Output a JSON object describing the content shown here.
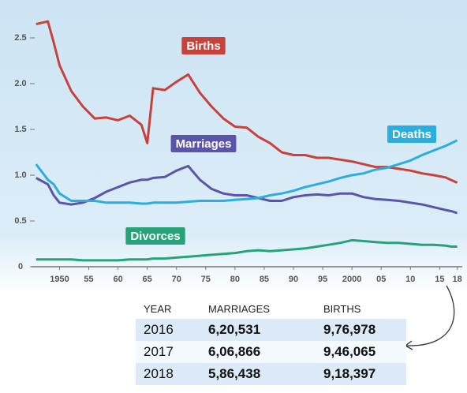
{
  "chart_data": {
    "type": "line",
    "x": [
      1946,
      1948,
      1949,
      1950,
      1952,
      1954,
      1956,
      1958,
      1960,
      1962,
      1964,
      1965,
      1966,
      1968,
      1970,
      1972,
      1974,
      1976,
      1978,
      1980,
      1982,
      1984,
      1986,
      1988,
      1990,
      1992,
      1994,
      1996,
      1998,
      2000,
      2002,
      2004,
      2006,
      2008,
      2010,
      2012,
      2014,
      2016,
      2017,
      2018
    ],
    "series": [
      {
        "name": "Births",
        "color": "#c8413a",
        "values": [
          2.65,
          2.68,
          2.45,
          2.2,
          1.92,
          1.75,
          1.62,
          1.63,
          1.6,
          1.65,
          1.55,
          1.35,
          1.95,
          1.93,
          2.02,
          2.1,
          1.9,
          1.75,
          1.62,
          1.53,
          1.52,
          1.42,
          1.35,
          1.25,
          1.22,
          1.22,
          1.19,
          1.19,
          1.17,
          1.15,
          1.12,
          1.09,
          1.09,
          1.07,
          1.05,
          1.02,
          1.0,
          0.976,
          0.946,
          0.918
        ]
      },
      {
        "name": "Marriages",
        "color": "#5a55a8",
        "values": [
          0.97,
          0.9,
          0.78,
          0.7,
          0.68,
          0.7,
          0.75,
          0.82,
          0.87,
          0.92,
          0.95,
          0.95,
          0.97,
          0.98,
          1.05,
          1.1,
          0.95,
          0.85,
          0.8,
          0.78,
          0.78,
          0.75,
          0.72,
          0.72,
          0.76,
          0.78,
          0.79,
          0.78,
          0.8,
          0.8,
          0.76,
          0.74,
          0.73,
          0.72,
          0.7,
          0.68,
          0.65,
          0.62,
          0.607,
          0.586
        ]
      },
      {
        "name": "Deaths",
        "color": "#2aaee0",
        "values": [
          1.12,
          0.95,
          0.9,
          0.8,
          0.72,
          0.72,
          0.72,
          0.7,
          0.7,
          0.7,
          0.69,
          0.69,
          0.7,
          0.7,
          0.7,
          0.71,
          0.72,
          0.72,
          0.72,
          0.73,
          0.74,
          0.75,
          0.78,
          0.8,
          0.83,
          0.87,
          0.9,
          0.93,
          0.97,
          1.0,
          1.02,
          1.06,
          1.08,
          1.12,
          1.16,
          1.22,
          1.27,
          1.32,
          1.35,
          1.38
        ]
      },
      {
        "name": "Divorces",
        "color": "#27a37a",
        "values": [
          0.08,
          0.08,
          0.08,
          0.08,
          0.08,
          0.07,
          0.07,
          0.07,
          0.07,
          0.08,
          0.08,
          0.08,
          0.09,
          0.09,
          0.1,
          0.11,
          0.12,
          0.13,
          0.14,
          0.15,
          0.17,
          0.18,
          0.17,
          0.18,
          0.19,
          0.2,
          0.22,
          0.24,
          0.26,
          0.29,
          0.28,
          0.27,
          0.26,
          0.26,
          0.25,
          0.24,
          0.24,
          0.23,
          0.22,
          0.22
        ]
      }
    ],
    "xlim": [
      1944,
      2019
    ],
    "xticks": [
      1950,
      {
        "value": 1955,
        "label": "55"
      },
      {
        "value": 1960,
        "label": "60"
      },
      {
        "value": 1965,
        "label": "65"
      },
      {
        "value": 1970,
        "label": "70"
      },
      {
        "value": 1975,
        "label": "75"
      },
      {
        "value": 1980,
        "label": "80"
      },
      {
        "value": 1985,
        "label": "85"
      },
      {
        "value": 1990,
        "label": "90"
      },
      {
        "value": 1995,
        "label": "95"
      },
      2000,
      {
        "value": 2005,
        "label": "05"
      },
      {
        "value": 2010,
        "label": "10"
      },
      {
        "value": 2015,
        "label": "15"
      },
      {
        "value": 2018,
        "label": "18"
      }
    ],
    "ylim": [
      0,
      2.75
    ],
    "yticks": [
      0,
      0.5,
      {
        "value": 1,
        "label": "1.0"
      },
      1.5,
      {
        "value": 2,
        "label": "2.0"
      },
      2.5
    ]
  },
  "table": {
    "header": [
      "YEAR",
      "MARRIAGES",
      "BIRTHS"
    ],
    "rows": [
      [
        "2016",
        "6,20,531",
        "9,76,978"
      ],
      [
        "2017",
        "6,06,866",
        "9,46,065"
      ],
      [
        "2018",
        "5,86,438",
        "9,18,397"
      ]
    ]
  }
}
